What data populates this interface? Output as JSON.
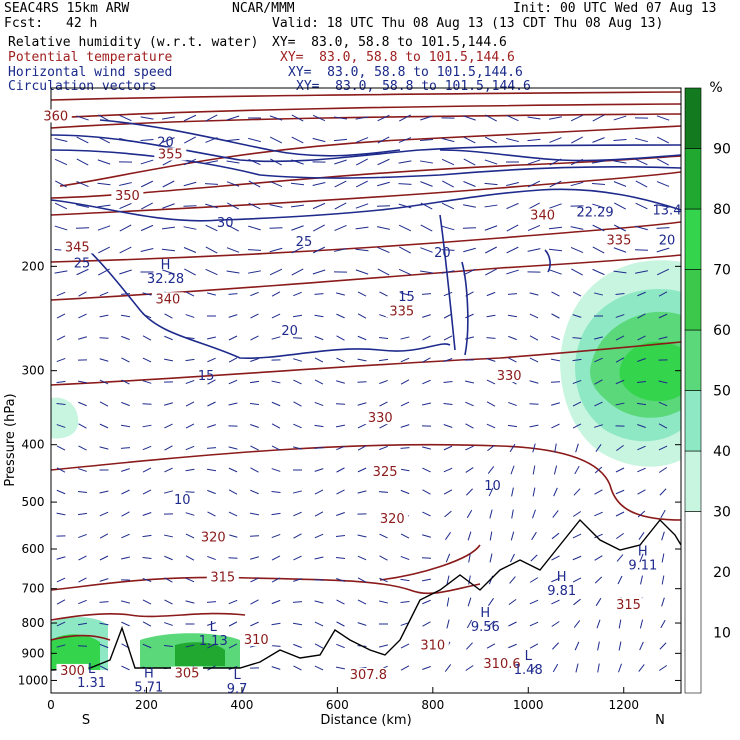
{
  "header": {
    "title": "SEAC4RS 15km ARW",
    "center": "NCAR/MMM",
    "init": "Init: 00 UTC Wed 07 Aug 13",
    "fcst_label": "Fcst:",
    "fcst_value": "42 h",
    "valid": "Valid: 18 UTC Thu 08 Aug 13 (13 CDT Thu 08 Aug 13)"
  },
  "fields": [
    {
      "name": "Relative humidity (w.r.t. water)",
      "xy": "XY=  83.0, 58.8 to 101.5,144.6",
      "color": "#000000"
    },
    {
      "name": "Potential temperature",
      "xy": "XY=  83.0, 58.8 to 101.5,144.6",
      "color": "#a02020"
    },
    {
      "name": "Horizontal wind speed",
      "xy": "XY=  83.0, 58.8 to 101.5,144.6",
      "color": "#1a2a8a"
    },
    {
      "name": "Circulation vectors",
      "xy": "XY=  83.0, 58.8 to 101.5,144.6",
      "color": "#1a2a8a"
    }
  ],
  "chart_data": {
    "type": "contour",
    "xlabel": "Distance (km)",
    "ylabel": "Pressure (hPa)",
    "xlim": [
      0,
      1320
    ],
    "ylim": [
      1050,
      100
    ],
    "y_scale": "log",
    "x_ticks": [
      0,
      200,
      400,
      600,
      800,
      1000,
      1200
    ],
    "y_ticks": [
      200,
      300,
      400,
      500,
      600,
      700,
      800,
      900,
      1000
    ],
    "x_end_labels": {
      "left": "S",
      "right": "N"
    },
    "colorbar": {
      "unit": "%",
      "ticks": [
        10,
        20,
        30,
        40,
        50,
        60,
        70,
        80,
        90
      ],
      "bands": [
        {
          "from": 0,
          "to": 30,
          "color": "#ffffff"
        },
        {
          "from": 30,
          "to": 40,
          "color": "#c8f5e0"
        },
        {
          "from": 40,
          "to": 50,
          "color": "#8ee8c4"
        },
        {
          "from": 50,
          "to": 60,
          "color": "#5ad87a"
        },
        {
          "from": 60,
          "to": 70,
          "color": "#3cc84a"
        },
        {
          "from": 70,
          "to": 80,
          "color": "#34d44c"
        },
        {
          "from": 80,
          "to": 90,
          "color": "#20a830"
        },
        {
          "from": 90,
          "to": 100,
          "color": "#137a1f"
        }
      ]
    },
    "theta_labels": [
      {
        "text": "360",
        "x": 10,
        "p": 113
      },
      {
        "text": "355",
        "x": 250,
        "p": 131
      },
      {
        "text": "350",
        "x": 160,
        "p": 154
      },
      {
        "text": "345",
        "x": 55,
        "p": 188
      },
      {
        "text": "340",
        "x": 245,
        "p": 230
      },
      {
        "text": "335",
        "x": 735,
        "p": 241
      },
      {
        "text": "340",
        "x": 1030,
        "p": 166
      },
      {
        "text": "335",
        "x": 1190,
        "p": 183
      },
      {
        "text": "330",
        "x": 960,
        "p": 310
      },
      {
        "text": "330",
        "x": 690,
        "p": 365
      },
      {
        "text": "325",
        "x": 700,
        "p": 450
      },
      {
        "text": "320",
        "x": 715,
        "p": 540
      },
      {
        "text": "320",
        "x": 340,
        "p": 580
      },
      {
        "text": "315",
        "x": 360,
        "p": 678
      },
      {
        "text": "315",
        "x": 1210,
        "p": 755
      },
      {
        "text": "310",
        "x": 430,
        "p": 865
      },
      {
        "text": "310",
        "x": 800,
        "p": 883
      },
      {
        "text": "310.6",
        "x": 945,
        "p": 950
      },
      {
        "text": "307.8",
        "x": 665,
        "p": 990
      },
      {
        "text": "305",
        "x": 285,
        "p": 985
      },
      {
        "text": "300",
        "x": 45,
        "p": 975
      }
    ],
    "wind_labels": [
      {
        "text": "20",
        "x": 240,
        "p": 125
      },
      {
        "text": "30",
        "x": 365,
        "p": 171
      },
      {
        "text": "25",
        "x": 530,
        "p": 184
      },
      {
        "text": "25",
        "x": 65,
        "p": 200
      },
      {
        "text": "20",
        "x": 1350,
        "p": 183
      },
      {
        "text": "20",
        "x": 820,
        "p": 192
      },
      {
        "text": "15",
        "x": 745,
        "p": 228
      },
      {
        "text": "20",
        "x": 500,
        "p": 260
      },
      {
        "text": "15",
        "x": 325,
        "p": 310
      },
      {
        "text": "10",
        "x": 925,
        "p": 475
      },
      {
        "text": "10",
        "x": 275,
        "p": 502
      },
      {
        "text": "22.29",
        "x": 1140,
        "p": 164
      },
      {
        "text": "13.4",
        "x": 1300,
        "p": 163
      }
    ],
    "extrema": [
      {
        "kind": "H",
        "value": "32.28",
        "x": 240,
        "p": 207
      },
      {
        "kind": "H",
        "value": "9.11",
        "x": 1240,
        "p": 630
      },
      {
        "kind": "H",
        "value": "9.81",
        "x": 1070,
        "p": 695
      },
      {
        "kind": "H",
        "value": "9.56",
        "x": 910,
        "p": 800
      },
      {
        "kind": "L",
        "value": "1.13",
        "x": 340,
        "p": 845
      },
      {
        "kind": "L",
        "value": "1.48",
        "x": 1000,
        "p": 945
      },
      {
        "kind": "L",
        "value": "1.31",
        "x": 85,
        "p": 995
      },
      {
        "kind": "H",
        "value": "5.71",
        "x": 205,
        "p": 1012
      },
      {
        "kind": "L",
        "value": "9.7",
        "x": 390,
        "p": 1018
      }
    ]
  }
}
